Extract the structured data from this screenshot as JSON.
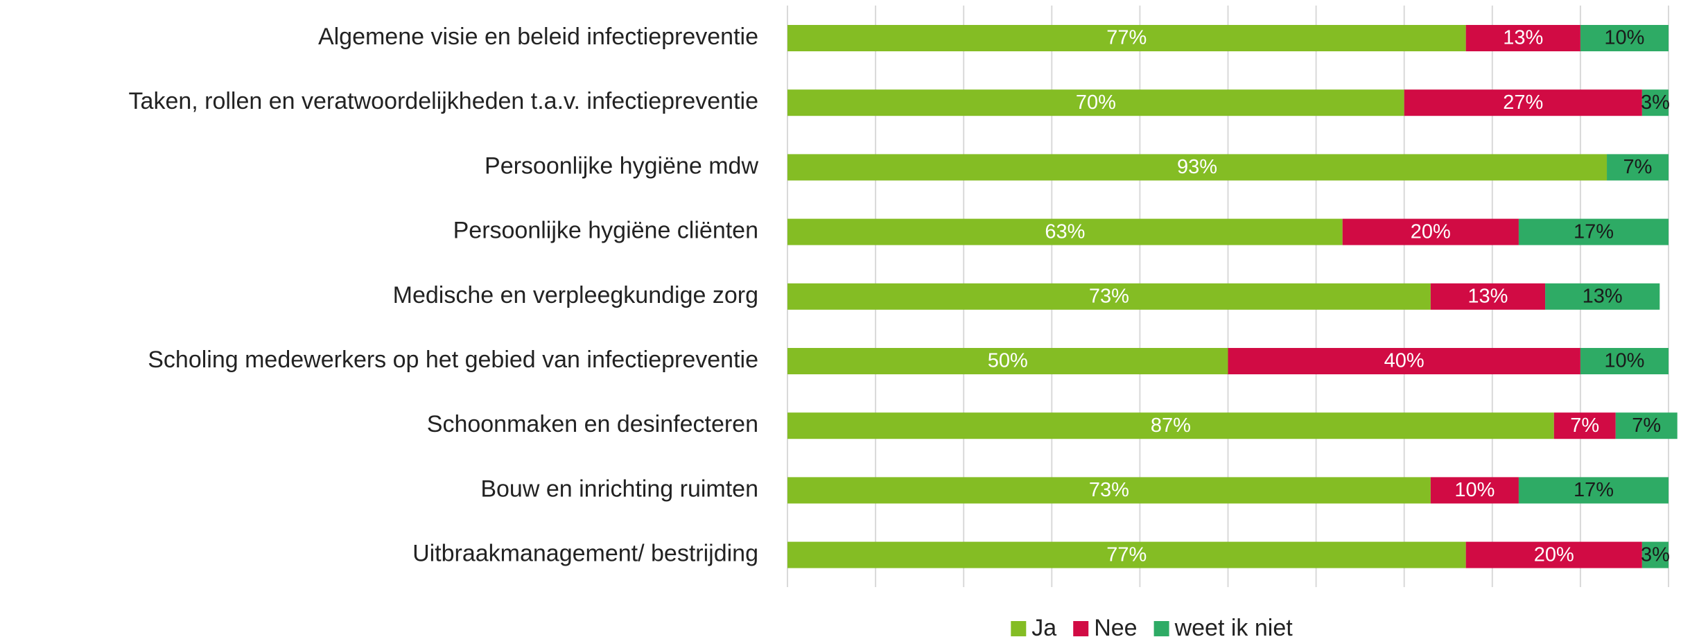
{
  "chart_data": {
    "type": "stacked_barh",
    "categories": [
      "Algemene visie en beleid infectiepreventie",
      "Taken, rollen en veratwoordelijkheden t.a.v. infectiepreventie",
      "Persoonlijke hygiëne mdw",
      "Persoonlijke hygiëne cliënten",
      "Medische en verpleegkundige zorg",
      "Scholing medewerkers op het gebied van infectiepreventie",
      "Schoonmaken en desinfecteren",
      "Bouw en inrichting ruimten",
      "Uitbraakmanagement/ bestrijding"
    ],
    "series": [
      {
        "name": "Ja",
        "color": "#84bd24",
        "label_color": "#ffffff",
        "values": [
          77,
          70,
          93,
          63,
          73,
          50,
          87,
          73,
          77
        ],
        "value_labels": [
          "77%",
          "70%",
          "93%",
          "63%",
          "73%",
          "50%",
          "87%",
          "73%",
          "77%"
        ]
      },
      {
        "name": "Nee",
        "color": "#d10b44",
        "label_color": "#ffffff",
        "values": [
          13,
          27,
          0,
          20,
          13,
          40,
          7,
          10,
          20
        ],
        "value_labels": [
          "13%",
          "27%",
          null,
          "20%",
          "13%",
          "40%",
          "7%",
          "10%",
          "20%"
        ]
      },
      {
        "name": "weet ik niet",
        "color": "#2eab65",
        "label_color": "#1a1a1a",
        "values": [
          10,
          3,
          7,
          17,
          13,
          10,
          7,
          17,
          3
        ],
        "value_labels": [
          "10%",
          "3%",
          "7%",
          "17%",
          "13%",
          "10%",
          "7%",
          "17%",
          "3%"
        ]
      }
    ],
    "xlim": [
      0,
      100
    ],
    "xticks": [
      0,
      10,
      20,
      30,
      40,
      50,
      60,
      70,
      80,
      90,
      100
    ],
    "grid": true,
    "legend": "bottom"
  }
}
